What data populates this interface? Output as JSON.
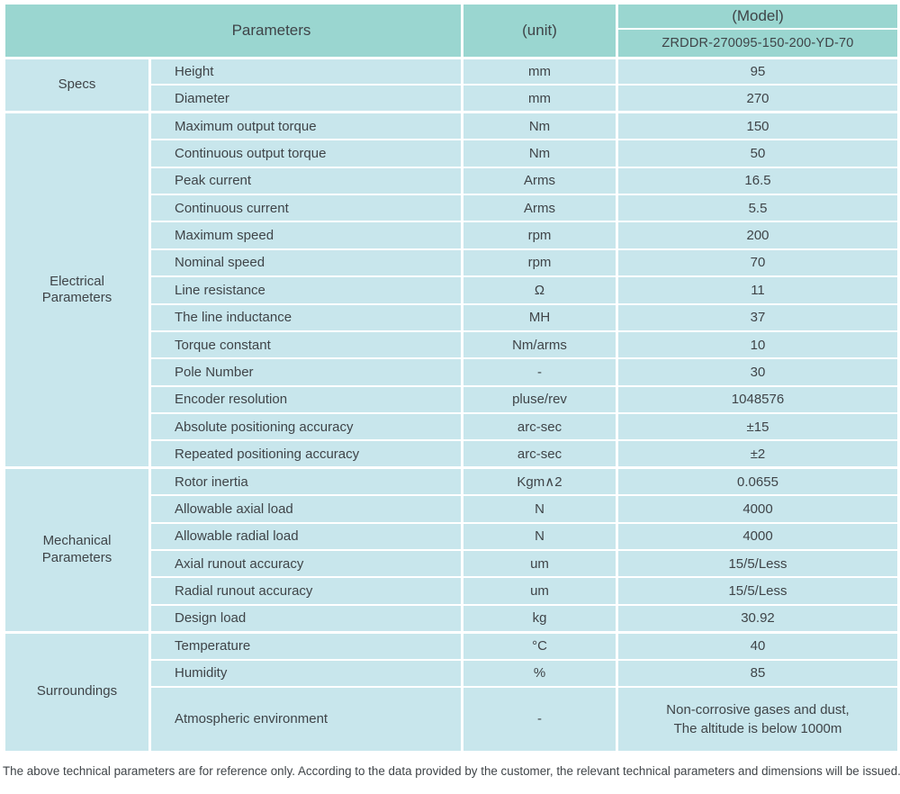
{
  "colors": {
    "header_bg": "#9ad6d0",
    "body_bg": "#c8e6ec",
    "divider": "#ffffff",
    "text": "#3f4448"
  },
  "table": {
    "header": {
      "parameters_label": "Parameters",
      "unit_label": "(unit)",
      "model_label": "(Model)",
      "model_value": "ZRDDR-270095-150-200-YD-70"
    },
    "sections": [
      {
        "group": "Specs",
        "rows": [
          [
            "Height",
            "mm",
            "95"
          ],
          [
            "Diameter",
            "mm",
            "270"
          ]
        ]
      },
      {
        "group": "Electrical\nParameters",
        "rows": [
          [
            "Maximum output torque",
            "Nm",
            "150"
          ],
          [
            "Continuous output torque",
            "Nm",
            "50"
          ],
          [
            "Peak current",
            "Arms",
            "16.5"
          ],
          [
            "Continuous current",
            "Arms",
            "5.5"
          ],
          [
            "Maximum speed",
            "rpm",
            "200"
          ],
          [
            "Nominal speed",
            "rpm",
            "70"
          ],
          [
            "Line resistance",
            "Ω",
            "11"
          ],
          [
            "The line inductance",
            "MH",
            "37"
          ],
          [
            "Torque constant",
            "Nm/arms",
            "10"
          ],
          [
            "Pole Number",
            "-",
            "30"
          ],
          [
            "Encoder resolution",
            "pluse/rev",
            "1048576"
          ],
          [
            "Absolute positioning accuracy",
            "arc-sec",
            "±15"
          ],
          [
            "Repeated positioning accuracy",
            "arc-sec",
            "±2"
          ]
        ]
      },
      {
        "group": "Mechanical\nParameters",
        "rows": [
          [
            "Rotor inertia",
            "Kgm∧2",
            "0.0655"
          ],
          [
            "Allowable axial load",
            "N",
            "4000"
          ],
          [
            "Allowable radial load",
            "N",
            "4000"
          ],
          [
            "Axial runout accuracy",
            "um",
            "15/5/Less"
          ],
          [
            "Radial runout accuracy",
            "um",
            "15/5/Less"
          ],
          [
            "Design load",
            "kg",
            "30.92"
          ]
        ]
      },
      {
        "group": "Surroundings",
        "rows": [
          [
            "Temperature",
            "°C",
            "40"
          ],
          [
            "Humidity",
            "%",
            "85"
          ],
          [
            "Atmospheric environment",
            "-",
            "Non-corrosive gases and dust,\nThe altitude is below 1000m"
          ]
        ]
      }
    ]
  },
  "footer": {
    "note": "The above technical parameters are for reference only. According to the data provided by the customer, the relevant technical parameters and dimensions will be issued."
  }
}
